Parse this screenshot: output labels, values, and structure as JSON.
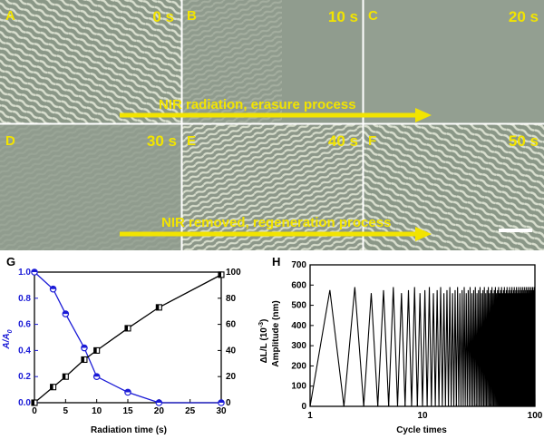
{
  "micrographs": {
    "panels": [
      {
        "letter": "A",
        "time": "0 s"
      },
      {
        "letter": "B",
        "time": "10 s"
      },
      {
        "letter": "C",
        "time": "20 s"
      },
      {
        "letter": "D",
        "time": "30 s"
      },
      {
        "letter": "E",
        "time": "40 s"
      },
      {
        "letter": "F",
        "time": "50 s"
      }
    ],
    "banner_top": "NIR radiation, erasure process",
    "banner_bottom": "NIR removed, regeneration process",
    "colors": {
      "label": "#f2e400",
      "background": "#8f9a8c",
      "divider": "#ffffff"
    }
  },
  "chart_data": [
    {
      "panel": "G",
      "type": "line",
      "xlabel": "Radiation time (s)",
      "xlim": [
        0,
        30
      ],
      "xticks": [
        0,
        5,
        10,
        15,
        20,
        25,
        30
      ],
      "left_axis": {
        "label_parts": [
          "A",
          "/",
          "A",
          "0"
        ],
        "ylim": [
          0,
          1.0
        ],
        "ticks": [
          "0.0",
          "0.2",
          "0.4",
          "0.6",
          "0.8",
          "1.0"
        ],
        "color": "#1a1ad6"
      },
      "right_axis": {
        "label_parts": [
          "ΔL/L",
          " (10",
          "-3",
          ")"
        ],
        "ylim": [
          0,
          100
        ],
        "ticks": [
          "0",
          "20",
          "40",
          "60",
          "80",
          "100"
        ],
        "color": "#000000"
      },
      "series": [
        {
          "axis": "left",
          "color": "#1a1ad6",
          "marker": "circle",
          "x": [
            0,
            3,
            5,
            8,
            10,
            15,
            20,
            30
          ],
          "y": [
            1.0,
            0.87,
            0.68,
            0.42,
            0.2,
            0.08,
            0.0,
            0.0
          ]
        },
        {
          "axis": "right",
          "color": "#000000",
          "marker": "half-square",
          "x": [
            0,
            3,
            5,
            8,
            10,
            15,
            20,
            30
          ],
          "y": [
            0,
            12,
            20,
            33,
            40,
            57,
            73,
            98
          ]
        }
      ]
    },
    {
      "panel": "H",
      "type": "line",
      "xlabel": "Cycle times",
      "ylabel": "Amplitude (nm)",
      "xscale": "log",
      "xlim": [
        1,
        100
      ],
      "xticks": [
        "1",
        "10",
        "100"
      ],
      "ylim": [
        0,
        700
      ],
      "yticks": [
        "0",
        "100",
        "200",
        "300",
        "400",
        "500",
        "600",
        "700"
      ],
      "series": [
        {
          "color": "#000000",
          "pattern": "triangular oscillation, one peak per cycle",
          "cycles": 100,
          "peak_amplitude": [
            560,
            575,
            590
          ],
          "min_amplitude": 0
        }
      ]
    }
  ]
}
